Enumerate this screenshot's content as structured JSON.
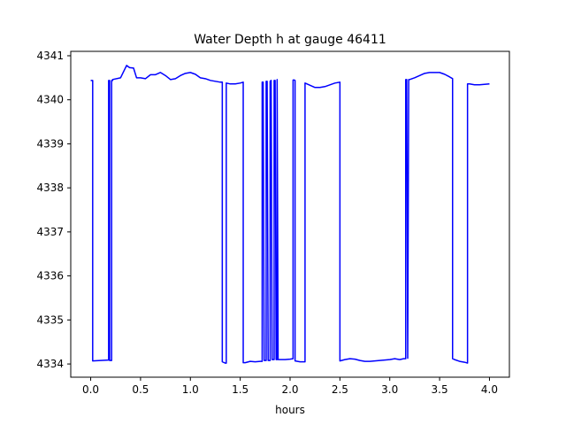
{
  "chart_data": {
    "type": "line",
    "title": "Water Depth h at gauge 46411",
    "xlabel": "hours",
    "ylabel": "",
    "xlim": [
      -0.2,
      4.2
    ],
    "ylim": [
      4333.7,
      4341.1
    ],
    "xticks": [
      0.0,
      0.5,
      1.0,
      1.5,
      2.0,
      2.5,
      3.0,
      3.5,
      4.0
    ],
    "xtick_labels": [
      "0.0",
      "0.5",
      "1.0",
      "1.5",
      "2.0",
      "2.5",
      "3.0",
      "3.5",
      "4.0"
    ],
    "yticks": [
      4334,
      4335,
      4336,
      4337,
      4338,
      4339,
      4340,
      4341
    ],
    "ytick_labels": [
      "4334",
      "4335",
      "4336",
      "4337",
      "4338",
      "4339",
      "4340",
      "4341"
    ],
    "grid": false,
    "series": [
      {
        "color": "#0000ff",
        "x": [
          0.0,
          0.02,
          0.02,
          0.18,
          0.18,
          0.19,
          0.19,
          0.21,
          0.21,
          0.22,
          0.22,
          0.3,
          0.36,
          0.39,
          0.43,
          0.46,
          0.5,
          0.55,
          0.6,
          0.65,
          0.7,
          0.75,
          0.8,
          0.85,
          0.9,
          0.95,
          1.0,
          1.05,
          1.1,
          1.15,
          1.2,
          1.25,
          1.3,
          1.32,
          1.32,
          1.35,
          1.36,
          1.36,
          1.4,
          1.45,
          1.5,
          1.53,
          1.53,
          1.55,
          1.6,
          1.65,
          1.7,
          1.72,
          1.72,
          1.73,
          1.74,
          1.76,
          1.76,
          1.77,
          1.78,
          1.8,
          1.8,
          1.81,
          1.82,
          1.84,
          1.84,
          1.85,
          1.86,
          1.87,
          1.87,
          1.88,
          1.95,
          2.0,
          2.03,
          2.03,
          2.04,
          2.05,
          2.05,
          2.1,
          2.15,
          2.15,
          2.2,
          2.25,
          2.3,
          2.35,
          2.4,
          2.45,
          2.5,
          2.5,
          2.55,
          2.6,
          2.65,
          2.7,
          2.75,
          2.8,
          2.85,
          2.9,
          2.95,
          3.0,
          3.05,
          3.1,
          3.14,
          3.16,
          3.16,
          3.17,
          3.18,
          3.18,
          3.19,
          3.2,
          3.2,
          3.25,
          3.3,
          3.35,
          3.4,
          3.45,
          3.5,
          3.55,
          3.6,
          3.63,
          3.63,
          3.65,
          3.7,
          3.75,
          3.78,
          3.78,
          3.8,
          3.85,
          3.9,
          3.95,
          4.0
        ],
        "y": [
          4340.44,
          4340.44,
          4334.07,
          4334.09,
          4340.44,
          4340.44,
          4334.08,
          4334.08,
          4340.44,
          4340.44,
          4340.46,
          4340.5,
          4340.78,
          4340.73,
          4340.72,
          4340.5,
          4340.5,
          4340.48,
          4340.57,
          4340.57,
          4340.62,
          4340.55,
          4340.46,
          4340.48,
          4340.55,
          4340.6,
          4340.62,
          4340.58,
          4340.5,
          4340.48,
          4340.44,
          4340.42,
          4340.4,
          4340.4,
          4334.05,
          4334.02,
          4334.02,
          4340.38,
          4340.36,
          4340.36,
          4340.38,
          4340.4,
          4334.03,
          4334.03,
          4334.06,
          4334.05,
          4334.06,
          4334.06,
          4340.4,
          4340.4,
          4334.08,
          4334.08,
          4340.42,
          4340.42,
          4334.08,
          4334.08,
          4340.42,
          4340.44,
          4334.1,
          4334.1,
          4340.44,
          4340.44,
          4334.1,
          4334.1,
          4340.46,
          4334.1,
          4334.1,
          4334.11,
          4334.12,
          4340.45,
          4340.45,
          4340.44,
          4334.07,
          4334.05,
          4334.05,
          4340.38,
          4340.33,
          4340.28,
          4340.28,
          4340.3,
          4340.34,
          4340.38,
          4340.4,
          4334.07,
          4334.1,
          4334.12,
          4334.11,
          4334.08,
          4334.06,
          4334.06,
          4334.07,
          4334.08,
          4334.09,
          4334.1,
          4334.12,
          4334.1,
          4334.12,
          4334.12,
          4340.46,
          4340.46,
          4334.13,
          4334.13,
          4340.46,
          4340.46,
          4340.46,
          4340.5,
          4340.55,
          4340.6,
          4340.62,
          4340.62,
          4340.62,
          4340.58,
          4340.52,
          4340.48,
          4334.12,
          4334.1,
          4334.06,
          4334.04,
          4334.02,
          4340.36,
          4340.36,
          4340.34,
          4340.34,
          4340.35,
          4340.36
        ]
      }
    ]
  }
}
